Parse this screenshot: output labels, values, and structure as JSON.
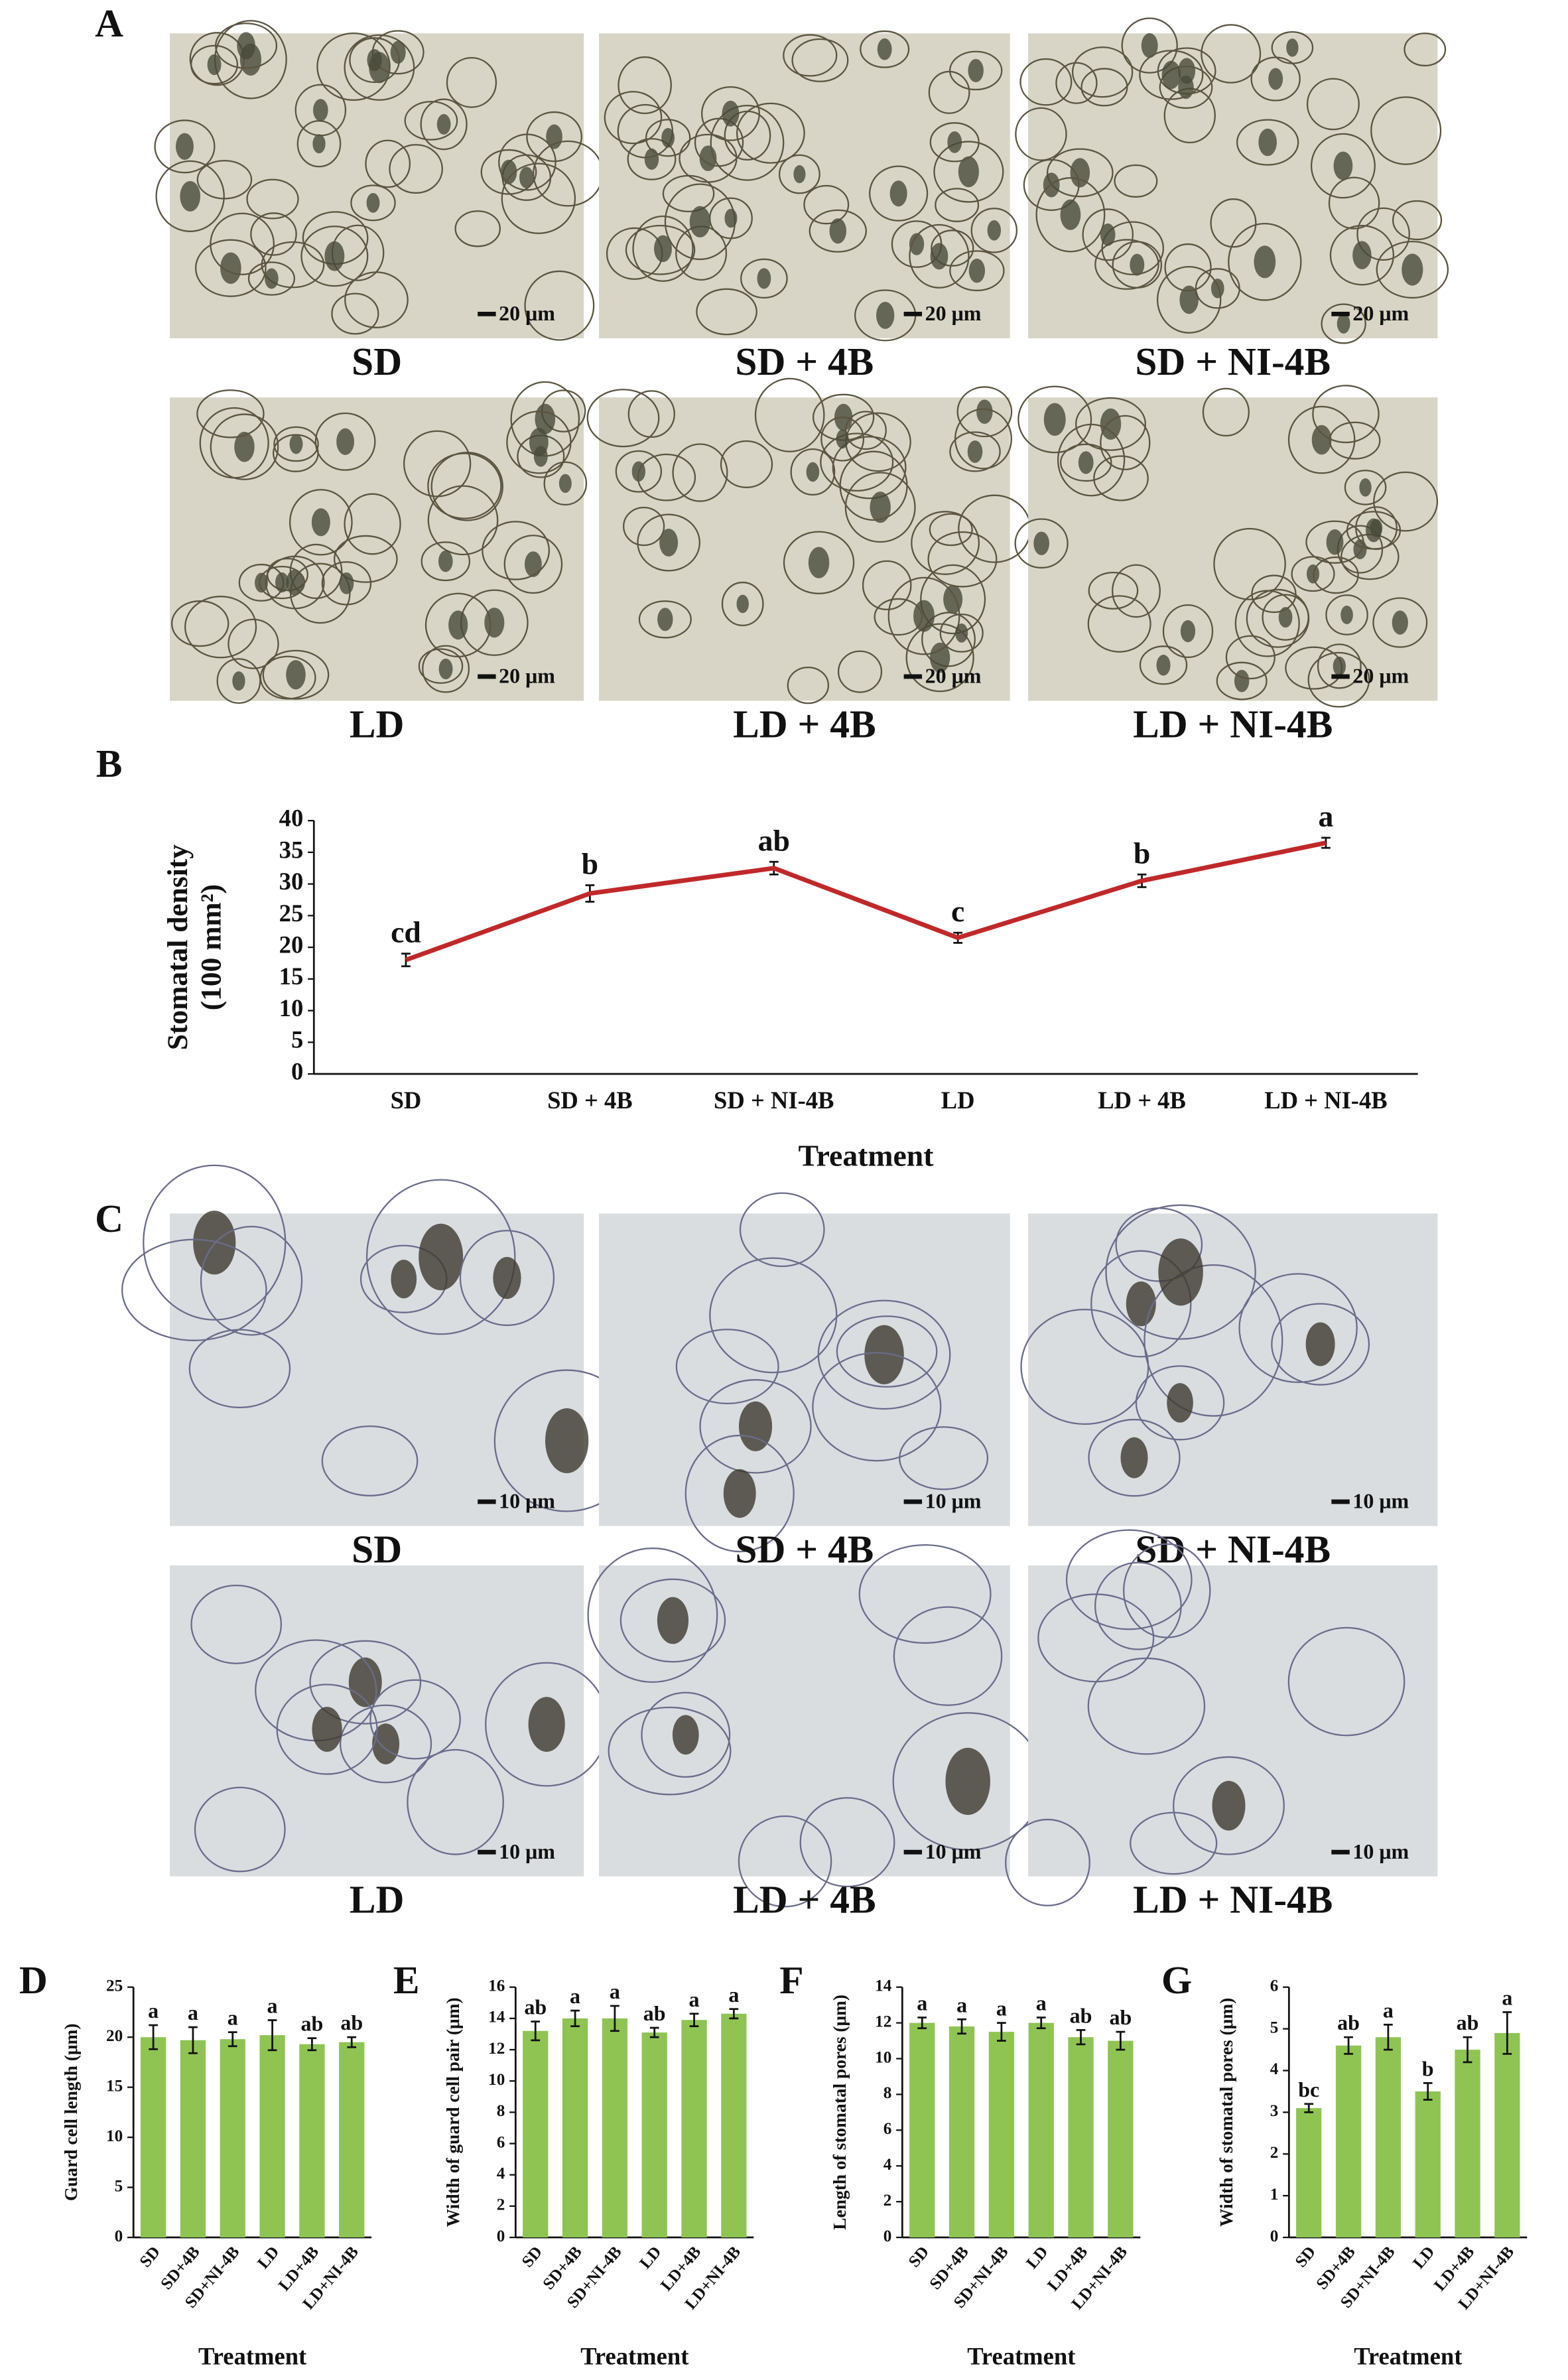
{
  "panel_labels": [
    "A",
    "B",
    "C",
    "D",
    "E",
    "F",
    "G"
  ],
  "panel_a": {
    "images": [
      {
        "caption": "SD",
        "scale": "20 μm"
      },
      {
        "caption": "SD + 4B",
        "scale": "20 μm"
      },
      {
        "caption": "SD + NI-4B",
        "scale": "20 μm"
      },
      {
        "caption": "LD",
        "scale": "20 μm"
      },
      {
        "caption": "LD + 4B",
        "scale": "20 μm"
      },
      {
        "caption": "LD + NI-4B",
        "scale": "20 μm"
      }
    ]
  },
  "panel_c": {
    "images": [
      {
        "caption": "SD",
        "scale": "10 μm"
      },
      {
        "caption": "SD + 4B",
        "scale": "10 μm"
      },
      {
        "caption": "SD + NI-4B",
        "scale": "10 μm"
      },
      {
        "caption": "LD",
        "scale": "10 μm"
      },
      {
        "caption": "LD + 4B",
        "scale": "10 μm"
      },
      {
        "caption": "LD + NI-4B",
        "scale": "10 μm"
      }
    ]
  },
  "chart_data": [
    {
      "type": "line",
      "y_label": [
        "Stomatal density",
        "(100 mm²)"
      ],
      "x_label": "Treatment",
      "categories": [
        "SD",
        "SD + 4B",
        "SD + NI-4B",
        "LD",
        "LD + 4B",
        "LD + NI-4B"
      ],
      "values": [
        18,
        28.5,
        32.5,
        21.5,
        30.5,
        36.5
      ],
      "errors": [
        1,
        1.3,
        1,
        0.8,
        1,
        0.8
      ],
      "annotations": [
        "cd",
        "b",
        "ab",
        "c",
        "b",
        "a"
      ],
      "color": "#c0282a",
      "ylim": [
        0,
        40
      ],
      "yticks": [
        0,
        5,
        10,
        15,
        20,
        25,
        30,
        35,
        40
      ]
    },
    {
      "type": "bar",
      "y_label": "Guard cell length (μm)",
      "x_label": "Treatment",
      "categories": [
        "SD",
        "SD+4B",
        "SD+NI-4B",
        "LD",
        "LD+4B",
        "LD+NI-4B"
      ],
      "values": [
        20,
        19.7,
        19.8,
        20.2,
        19.3,
        19.5
      ],
      "errors": [
        1.2,
        1.3,
        0.7,
        1.5,
        0.6,
        0.5
      ],
      "annotations": [
        "a",
        "a",
        "a",
        "a",
        "ab",
        "ab"
      ],
      "color": "#8fc453",
      "ylim": [
        0,
        25
      ],
      "yticks": [
        0,
        5,
        10,
        15,
        20,
        25
      ]
    },
    {
      "type": "bar",
      "y_label": "Width of guard cell pair (μm)",
      "x_label": "Treatment",
      "categories": [
        "SD",
        "SD+4B",
        "SD+NI-4B",
        "LD",
        "LD+4B",
        "LD+NI-4B"
      ],
      "values": [
        13.2,
        14,
        14,
        13.1,
        13.9,
        14.3
      ],
      "errors": [
        0.6,
        0.5,
        0.8,
        0.3,
        0.4,
        0.3
      ],
      "annotations": [
        "ab",
        "a",
        "a",
        "ab",
        "a",
        "a"
      ],
      "color": "#8fc453",
      "ylim": [
        0,
        16
      ],
      "yticks": [
        0,
        2,
        4,
        6,
        8,
        10,
        12,
        14,
        16
      ]
    },
    {
      "type": "bar",
      "y_label": "Length of stomatal pores (μm)",
      "x_label": "Treatment",
      "categories": [
        "SD",
        "SD+4B",
        "SD+NI-4B",
        "LD",
        "LD+4B",
        "LD+NI-4B"
      ],
      "values": [
        12,
        11.8,
        11.5,
        12,
        11.2,
        11
      ],
      "errors": [
        0.3,
        0.4,
        0.5,
        0.3,
        0.4,
        0.5
      ],
      "annotations": [
        "a",
        "a",
        "a",
        "a",
        "ab",
        "ab"
      ],
      "color": "#8fc453",
      "ylim": [
        0,
        14
      ],
      "yticks": [
        0,
        2,
        4,
        6,
        8,
        10,
        12,
        14
      ]
    },
    {
      "type": "bar",
      "y_label": "Width of stomatal pores (μm)",
      "x_label": "Treatment",
      "categories": [
        "SD",
        "SD+4B",
        "SD+NI-4B",
        "LD",
        "LD+4B",
        "LD+NI-4B"
      ],
      "values": [
        3.1,
        4.6,
        4.8,
        3.5,
        4.5,
        4.9
      ],
      "errors": [
        0.1,
        0.2,
        0.3,
        0.2,
        0.3,
        0.5
      ],
      "annotations": [
        "bc",
        "ab",
        "a",
        "b",
        "ab",
        "a"
      ],
      "color": "#8fc453",
      "ylim": [
        0,
        6
      ],
      "yticks": [
        0,
        1,
        2,
        3,
        4,
        5,
        6
      ]
    }
  ]
}
